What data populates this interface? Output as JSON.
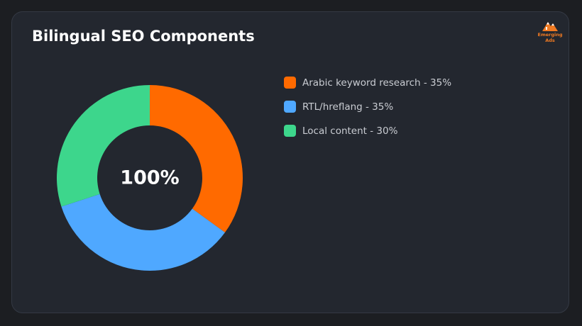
{
  "brand": {
    "name_line1": "Emerging",
    "name_line2": "Ads"
  },
  "colors": {
    "background": "#1c1e22",
    "card": "#23272f",
    "orange": "#ff6a00",
    "blue": "#4fa8ff",
    "green": "#3dd68c"
  },
  "chart_data": {
    "type": "pie",
    "variant": "donut",
    "title": "Bilingual SEO Components",
    "center_label": "100%",
    "legend_position": "right",
    "slices": [
      {
        "name": "Arabic keyword research",
        "value": 35,
        "color": "#ff6a00",
        "legend_label": "Arabic keyword research - 35%"
      },
      {
        "name": "RTL/hreflang",
        "value": 35,
        "color": "#4fa8ff",
        "legend_label": "RTL/hreflang - 35%"
      },
      {
        "name": "Local content",
        "value": 30,
        "color": "#3dd68c",
        "legend_label": "Local content - 30%"
      }
    ]
  }
}
